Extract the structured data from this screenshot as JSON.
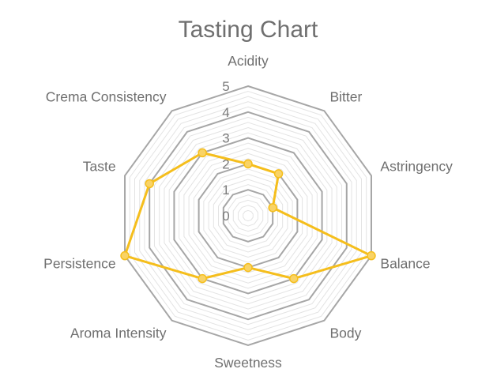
{
  "chart_data": {
    "type": "radar",
    "title": "Tasting Chart",
    "categories": [
      "Acidity",
      "Bitter",
      "Astringency",
      "Balance",
      "Body",
      "Sweetness",
      "Aroma Intensity",
      "Persistence",
      "Taste",
      "Crema Consistency"
    ],
    "series": [
      {
        "values": [
          2,
          2,
          1,
          5,
          3,
          2,
          3,
          5,
          4,
          3
        ]
      }
    ],
    "rlim": [
      0,
      5
    ],
    "ticks": [
      "0",
      "1",
      "2",
      "3",
      "4",
      "5"
    ],
    "grid": true,
    "legend": "none",
    "colors": {
      "series": "#f5be1c",
      "marker_fill": "#f9d366",
      "major_grid": "#a6a6a6",
      "minor_grid": "#e3e3e3",
      "text": "#6f6f6f"
    }
  }
}
